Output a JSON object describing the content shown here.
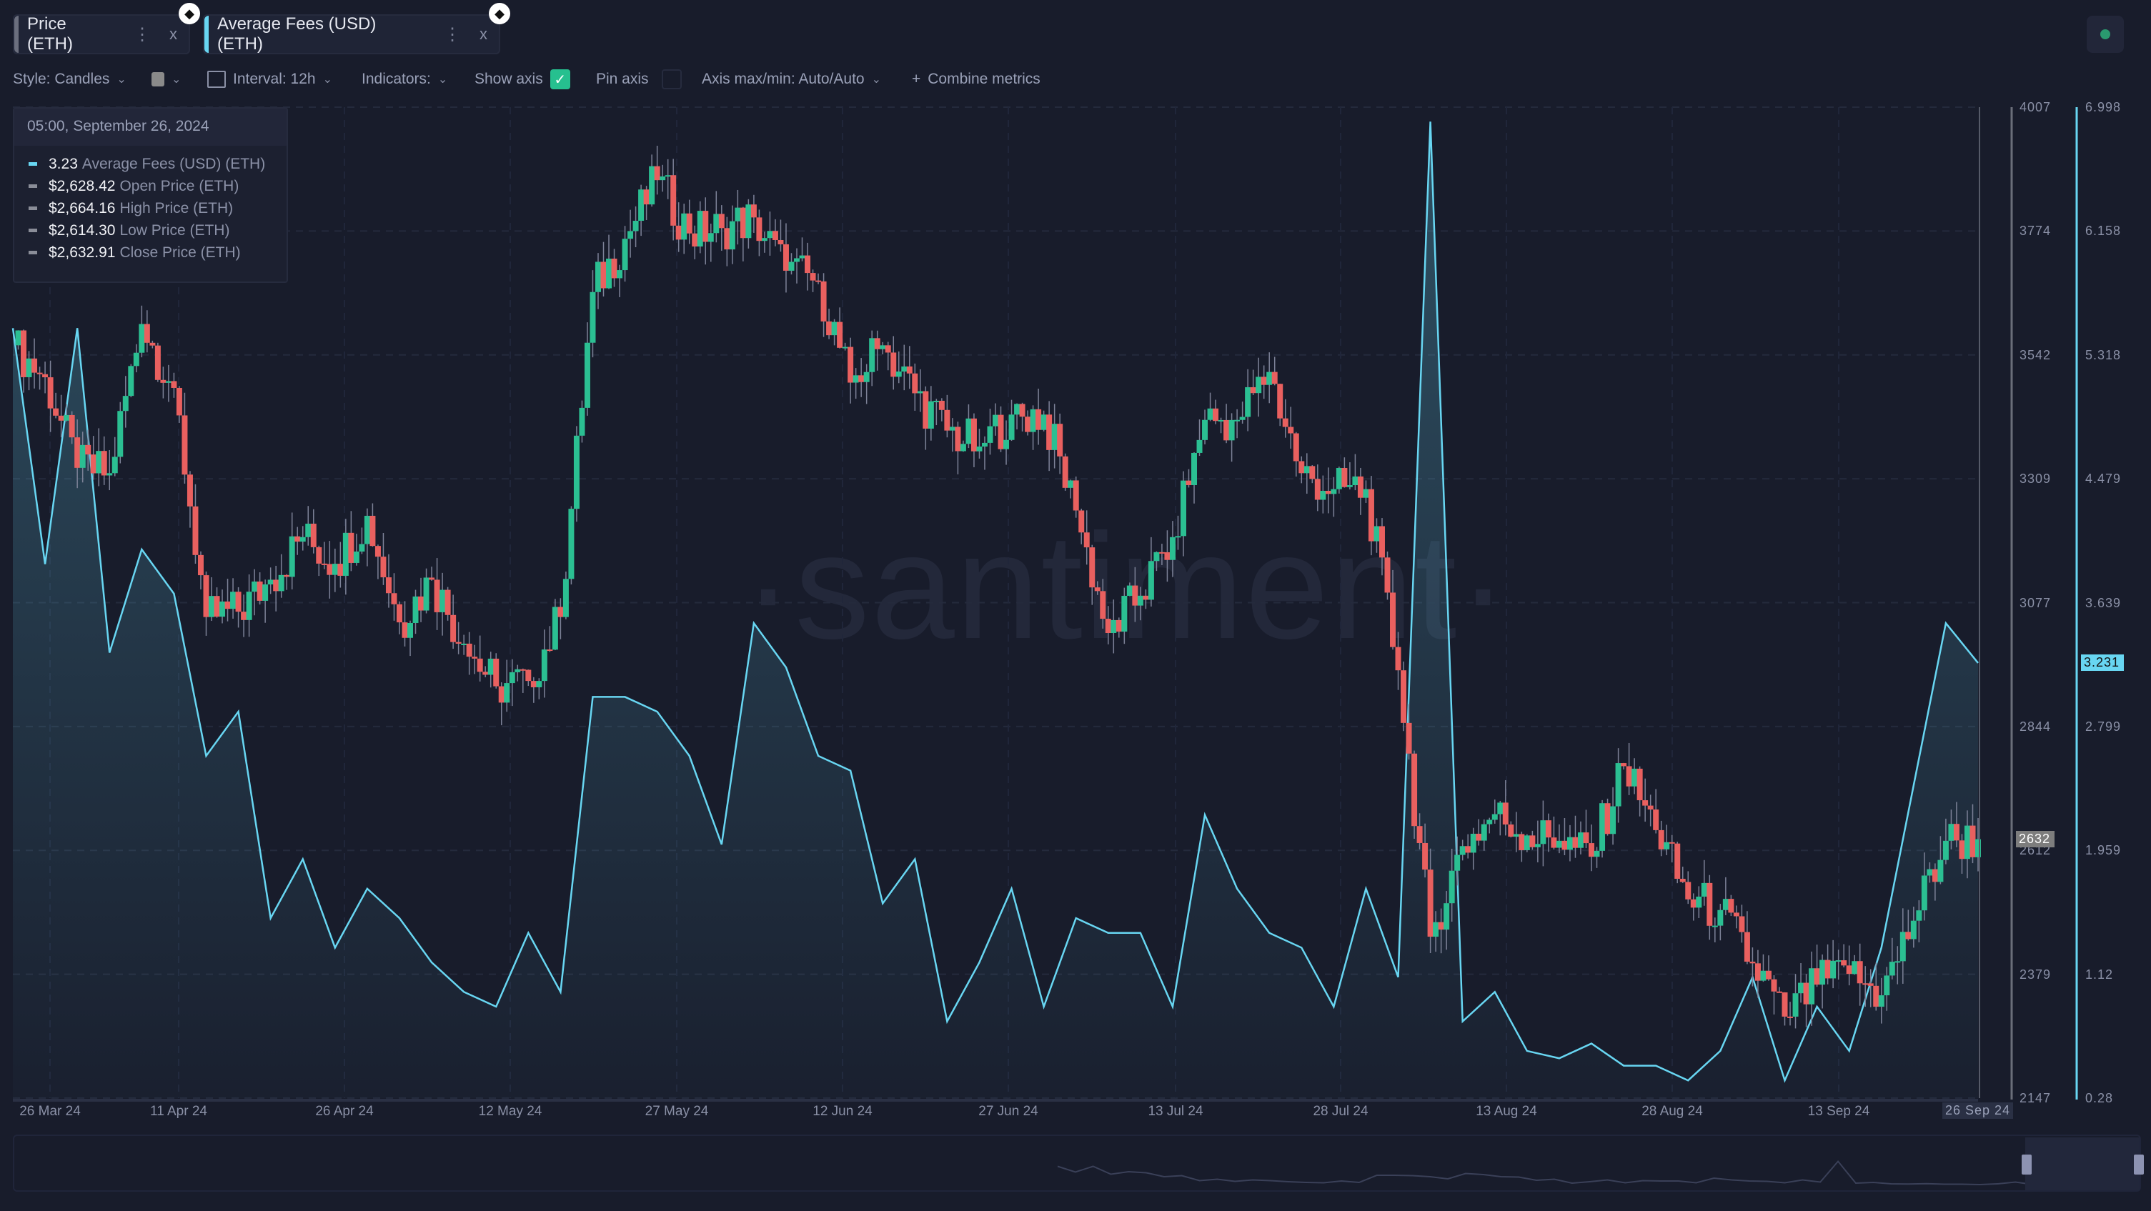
{
  "tabs": [
    {
      "label": "Price (ETH)",
      "color": "#6b6f7e",
      "menu": "⋮",
      "close": "x",
      "icon": "ethereum-icon"
    },
    {
      "label": "Average Fees (USD) (ETH)",
      "color": "#68d6f2",
      "menu": "⋮",
      "close": "x",
      "icon": "ethereum-icon"
    }
  ],
  "toolbar": {
    "style": "Style: Candles",
    "interval": "Interval: 12h",
    "indicators": "Indicators:",
    "show_axis": "Show axis",
    "show_axis_checked": true,
    "pin_axis": "Pin axis",
    "pin_axis_checked": false,
    "axis_maxmin": "Axis max/min: Auto/Auto",
    "combine": "Combine metrics",
    "plus": "+",
    "chevron": "⌄",
    "check": "✓"
  },
  "tooltip": {
    "date": "05:00, September 26, 2024",
    "rows": [
      {
        "value": "3.23",
        "label": "Average Fees (USD) (ETH)",
        "color": "#68d6f2"
      },
      {
        "value": "$2,628.42",
        "label": "Open Price (ETH)",
        "color": "#8a8d98"
      },
      {
        "value": "$2,664.16",
        "label": "High Price (ETH)",
        "color": "#8a8d98"
      },
      {
        "value": "$2,614.30",
        "label": "Low Price (ETH)",
        "color": "#8a8d98"
      },
      {
        "value": "$2,632.91",
        "label": "Close Price (ETH)",
        "color": "#8a8d98"
      }
    ]
  },
  "watermark": "·santiment·",
  "colors": {
    "up": "#2bbf92",
    "down": "#e9605f",
    "fees": "#68d6f2",
    "background": "#181c2b"
  },
  "chart_data": {
    "type": "line",
    "x_tick_labels": [
      "26 Mar 24",
      "11 Apr 24",
      "26 Apr 24",
      "12 May 24",
      "27 May 24",
      "12 Jun 24",
      "27 Jun 24",
      "13 Jul 24",
      "28 Jul 24",
      "13 Aug 24",
      "28 Aug 24",
      "13 Sep 24"
    ],
    "cursor_label": "26 Sep 24",
    "price_axis": {
      "ticks": [
        "4007",
        "3774",
        "3542",
        "3309",
        "3077",
        "2844",
        "2612",
        "2379",
        "2147"
      ],
      "range": [
        2147,
        4007
      ],
      "current": "2632"
    },
    "fees_axis": {
      "ticks": [
        "6.998",
        "6.158",
        "5.318",
        "4.479",
        "3.639",
        "2.799",
        "1.959",
        "1.12",
        "0.28"
      ],
      "range": [
        0.28,
        6.998
      ],
      "current": "3.231"
    },
    "x": [
      "2024-03-27",
      "2024-03-30",
      "2024-04-02",
      "2024-04-05",
      "2024-04-08",
      "2024-04-11",
      "2024-04-14",
      "2024-04-17",
      "2024-04-20",
      "2024-04-23",
      "2024-04-26",
      "2024-04-29",
      "2024-05-02",
      "2024-05-05",
      "2024-05-08",
      "2024-05-11",
      "2024-05-14",
      "2024-05-17",
      "2024-05-20",
      "2024-05-23",
      "2024-05-26",
      "2024-05-29",
      "2024-06-01",
      "2024-06-04",
      "2024-06-07",
      "2024-06-10",
      "2024-06-13",
      "2024-06-16",
      "2024-06-19",
      "2024-06-22",
      "2024-06-25",
      "2024-06-28",
      "2024-07-01",
      "2024-07-04",
      "2024-07-07",
      "2024-07-10",
      "2024-07-13",
      "2024-07-16",
      "2024-07-19",
      "2024-07-22",
      "2024-07-25",
      "2024-07-28",
      "2024-07-31",
      "2024-08-03",
      "2024-08-06",
      "2024-08-09",
      "2024-08-12",
      "2024-08-15",
      "2024-08-18",
      "2024-08-21",
      "2024-08-24",
      "2024-08-27",
      "2024-08-30",
      "2024-09-02",
      "2024-09-05",
      "2024-09-08",
      "2024-09-11",
      "2024-09-14",
      "2024-09-17",
      "2024-09-20",
      "2024-09-23",
      "2024-09-26"
    ],
    "series": [
      {
        "name": "Price (ETH)",
        "type": "candles",
        "close": [
          3560,
          3500,
          3330,
          3320,
          3600,
          3480,
          3050,
          3060,
          3120,
          3200,
          3150,
          3240,
          3040,
          3120,
          3000,
          2920,
          2930,
          3050,
          3660,
          3760,
          3870,
          3770,
          3780,
          3800,
          3700,
          3680,
          3490,
          3560,
          3470,
          3400,
          3370,
          3430,
          3430,
          3250,
          3020,
          3090,
          3200,
          3420,
          3420,
          3510,
          3320,
          3290,
          3290,
          2950,
          2450,
          2620,
          2680,
          2640,
          2630,
          2600,
          2770,
          2650,
          2520,
          2500,
          2400,
          2300,
          2360,
          2380,
          2340,
          2480,
          2630,
          2633
        ]
      },
      {
        "name": "Average Fees (USD) (ETH)",
        "type": "area",
        "values": [
          5.5,
          3.9,
          5.5,
          3.3,
          4.0,
          3.7,
          2.6,
          2.9,
          1.5,
          1.9,
          1.3,
          1.7,
          1.5,
          1.2,
          1.0,
          0.9,
          1.4,
          1.0,
          3.0,
          3.0,
          2.9,
          2.6,
          2.0,
          3.5,
          3.2,
          2.6,
          2.5,
          1.6,
          1.9,
          0.8,
          1.2,
          1.7,
          0.9,
          1.5,
          1.4,
          1.4,
          0.9,
          2.2,
          1.7,
          1.4,
          1.3,
          0.9,
          1.7,
          1.1,
          6.9,
          0.8,
          1.0,
          0.6,
          0.55,
          0.65,
          0.5,
          0.5,
          0.4,
          0.6,
          1.1,
          0.4,
          0.9,
          0.6,
          1.3,
          2.4,
          3.5,
          3.23
        ]
      }
    ]
  }
}
